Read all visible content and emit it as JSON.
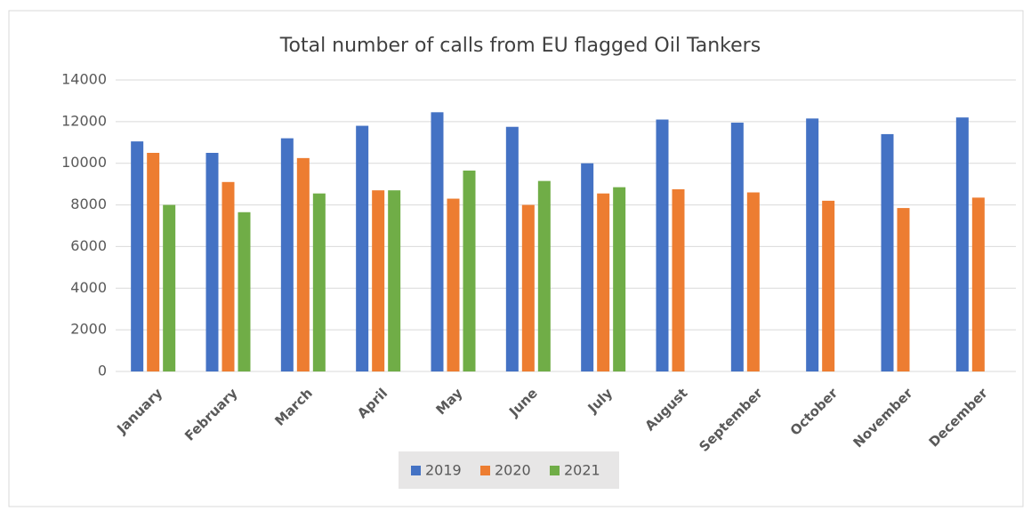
{
  "chart_data": {
    "type": "bar",
    "title": "Total number of calls from EU flagged Oil Tankers",
    "categories": [
      "January",
      "February",
      "March",
      "April",
      "May",
      "June",
      "July",
      "August",
      "September",
      "October",
      "November",
      "December"
    ],
    "series": [
      {
        "name": "2019",
        "color": "#4472c4",
        "values": [
          11050,
          10500,
          11200,
          11800,
          12450,
          11750,
          10000,
          12100,
          11950,
          12150,
          11400,
          12200
        ]
      },
      {
        "name": "2020",
        "color": "#ed7d31",
        "values": [
          10500,
          9100,
          10250,
          8700,
          8300,
          8000,
          8550,
          8750,
          8600,
          8200,
          7850,
          8350
        ]
      },
      {
        "name": "2021",
        "color": "#70ad47",
        "values": [
          8000,
          7650,
          8550,
          8700,
          9650,
          9150,
          8850,
          null,
          null,
          null,
          null,
          null
        ]
      }
    ],
    "ylim": [
      0,
      14000
    ],
    "yticks": [
      0,
      2000,
      4000,
      6000,
      8000,
      10000,
      12000,
      14000
    ],
    "grid": true,
    "legend": "bottom"
  }
}
